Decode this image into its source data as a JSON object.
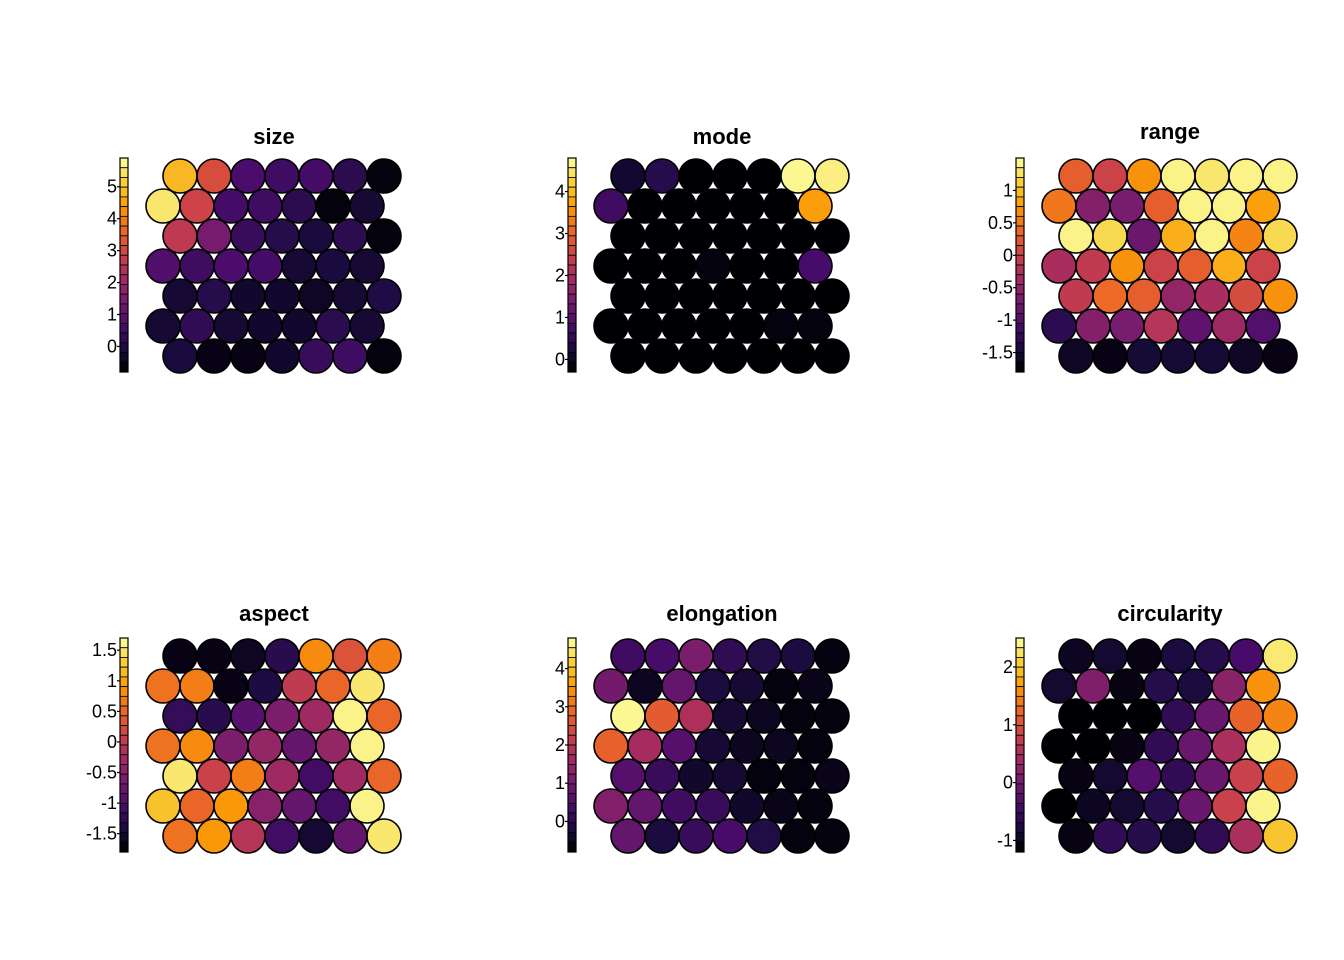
{
  "chart_data": [
    {
      "type": "heatmap",
      "title": "size",
      "colormap": "inferno",
      "range": [
        -0.8,
        5.9
      ],
      "ticks": [
        "0",
        "1",
        "2",
        "3",
        "4",
        "5"
      ],
      "tick_values": [
        0,
        1,
        2,
        3,
        4,
        5
      ],
      "grid": [
        [
          4.8,
          3.1,
          0.7,
          0.5,
          0.6,
          0.2,
          -0.7
        ],
        [
          5.5,
          2.9,
          0.6,
          0.5,
          0.2,
          -0.7,
          -0.2
        ],
        [
          2.6,
          1.4,
          0.4,
          0.1,
          -0.1,
          0.2,
          -0.7
        ],
        [
          0.8,
          0.5,
          0.7,
          0.6,
          -0.2,
          -0.1,
          -0.2
        ],
        [
          -0.2,
          0.1,
          -0.3,
          -0.3,
          -0.4,
          -0.2,
          0.0
        ],
        [
          -0.2,
          0.3,
          -0.2,
          -0.3,
          -0.3,
          0.2,
          -0.2
        ],
        [
          -0.1,
          -0.6,
          -0.6,
          -0.3,
          0.4,
          0.5,
          -0.7
        ]
      ]
    },
    {
      "type": "heatmap",
      "title": "mode",
      "colormap": "inferno",
      "range": [
        -0.3,
        4.8
      ],
      "ticks": [
        "0",
        "1",
        "2",
        "3",
        "4"
      ],
      "tick_values": [
        0,
        1,
        2,
        3,
        4
      ],
      "grid": [
        [
          0.1,
          0.4,
          -0.3,
          -0.3,
          -0.3,
          4.7,
          4.6
        ],
        [
          0.7,
          -0.3,
          -0.3,
          -0.3,
          -0.3,
          -0.3,
          3.7
        ],
        [
          -0.3,
          -0.3,
          -0.3,
          -0.3,
          -0.3,
          -0.3,
          -0.3
        ],
        [
          -0.3,
          -0.3,
          -0.3,
          -0.2,
          -0.3,
          -0.3,
          0.8
        ],
        [
          -0.3,
          -0.3,
          -0.3,
          -0.3,
          -0.3,
          -0.3,
          -0.3
        ],
        [
          -0.3,
          -0.3,
          -0.3,
          -0.3,
          -0.3,
          -0.2,
          -0.2
        ],
        [
          -0.3,
          -0.3,
          -0.3,
          -0.3,
          -0.3,
          -0.3,
          -0.3
        ]
      ]
    },
    {
      "type": "heatmap",
      "title": "range",
      "colormap": "inferno",
      "range": [
        -1.8,
        1.5
      ],
      "ticks": [
        "1",
        "0.5",
        "0",
        "-0.5",
        "-1",
        "-1.5"
      ],
      "tick_values": [
        1,
        0.5,
        0,
        -0.5,
        -1,
        -1.5
      ],
      "grid": [
        [
          0.3,
          0.0,
          0.7,
          1.4,
          1.3,
          1.4,
          1.4
        ],
        [
          0.5,
          -0.6,
          -0.7,
          0.3,
          1.4,
          1.4,
          0.8
        ],
        [
          1.4,
          1.2,
          -0.8,
          0.9,
          1.4,
          0.6,
          1.2
        ],
        [
          -0.3,
          -0.1,
          0.7,
          0.0,
          0.3,
          0.9,
          0.0
        ],
        [
          -0.1,
          0.4,
          0.3,
          -0.5,
          -0.3,
          0.1,
          0.7
        ],
        [
          -1.3,
          -0.6,
          -0.7,
          -0.2,
          -0.9,
          -0.4,
          -1.0
        ],
        [
          -1.6,
          -1.7,
          -1.5,
          -1.5,
          -1.5,
          -1.6,
          -1.7
        ]
      ]
    },
    {
      "type": "heatmap",
      "title": "aspect",
      "colormap": "inferno",
      "range": [
        -1.8,
        1.7
      ],
      "ticks": [
        "1.5",
        "1",
        "0.5",
        "0",
        "-0.5",
        "-1",
        "-1.5"
      ],
      "tick_values": [
        1.5,
        1,
        0.5,
        0,
        -0.5,
        -1,
        -1.5
      ],
      "grid": [
        [
          -1.7,
          -1.7,
          -1.6,
          -1.3,
          0.8,
          0.3,
          0.7
        ],
        [
          0.6,
          0.7,
          -1.7,
          -1.4,
          0.0,
          0.5,
          1.5
        ],
        [
          -1.2,
          -1.3,
          -0.9,
          -0.6,
          -0.3,
          1.6,
          0.5
        ],
        [
          0.6,
          0.8,
          -0.6,
          -0.4,
          -0.8,
          -0.4,
          1.6
        ],
        [
          1.5,
          0.1,
          0.7,
          -0.3,
          -1.1,
          -0.3,
          0.5
        ],
        [
          1.2,
          0.5,
          0.9,
          -0.5,
          -0.8,
          -1.1,
          1.6
        ],
        [
          0.6,
          0.9,
          -0.1,
          -1.1,
          -1.5,
          -0.8,
          1.5
        ]
      ]
    },
    {
      "type": "heatmap",
      "title": "elongation",
      "colormap": "inferno",
      "range": [
        -0.8,
        4.8
      ],
      "ticks": [
        "0",
        "1",
        "2",
        "3",
        "4"
      ],
      "tick_values": [
        0,
        1,
        2,
        3,
        4
      ],
      "grid": [
        [
          0.3,
          0.4,
          1.1,
          0.1,
          -0.1,
          -0.2,
          -0.7
        ],
        [
          1.0,
          -0.5,
          0.8,
          -0.2,
          -0.3,
          -0.7,
          -0.6
        ],
        [
          4.7,
          2.7,
          1.8,
          -0.3,
          -0.5,
          -0.7,
          -0.7
        ],
        [
          2.8,
          1.7,
          0.6,
          -0.3,
          -0.5,
          -0.5,
          -0.7
        ],
        [
          0.6,
          0.2,
          -0.4,
          -0.3,
          -0.7,
          -0.7,
          -0.6
        ],
        [
          1.2,
          0.8,
          0.3,
          0.2,
          -0.4,
          -0.6,
          -0.7
        ],
        [
          0.8,
          -0.2,
          0.2,
          0.4,
          -0.1,
          -0.7,
          -0.7
        ]
      ]
    },
    {
      "type": "heatmap",
      "title": "circularity",
      "colormap": "inferno",
      "range": [
        -1.2,
        2.5
      ],
      "ticks": [
        "2",
        "1",
        "0",
        "-1"
      ],
      "tick_values": [
        2,
        1,
        0,
        -1
      ],
      "grid": [
        [
          -1.0,
          -0.9,
          -1.1,
          -0.8,
          -0.7,
          -0.4,
          2.3
        ],
        [
          -0.9,
          0.1,
          -1.1,
          -0.7,
          -0.8,
          0.2,
          1.6
        ],
        [
          -1.2,
          -1.2,
          -1.2,
          -0.6,
          -0.1,
          1.2,
          1.5
        ],
        [
          -1.2,
          -1.2,
          -1.1,
          -0.6,
          -0.1,
          0.5,
          2.4
        ],
        [
          -1.1,
          -0.9,
          -0.3,
          -0.6,
          -0.1,
          0.8,
          1.2
        ],
        [
          -1.2,
          -1.0,
          -0.9,
          -0.7,
          -0.1,
          0.8,
          2.4
        ],
        [
          -1.1,
          -0.6,
          -0.7,
          -0.9,
          -0.6,
          0.5,
          2.0
        ]
      ]
    }
  ]
}
